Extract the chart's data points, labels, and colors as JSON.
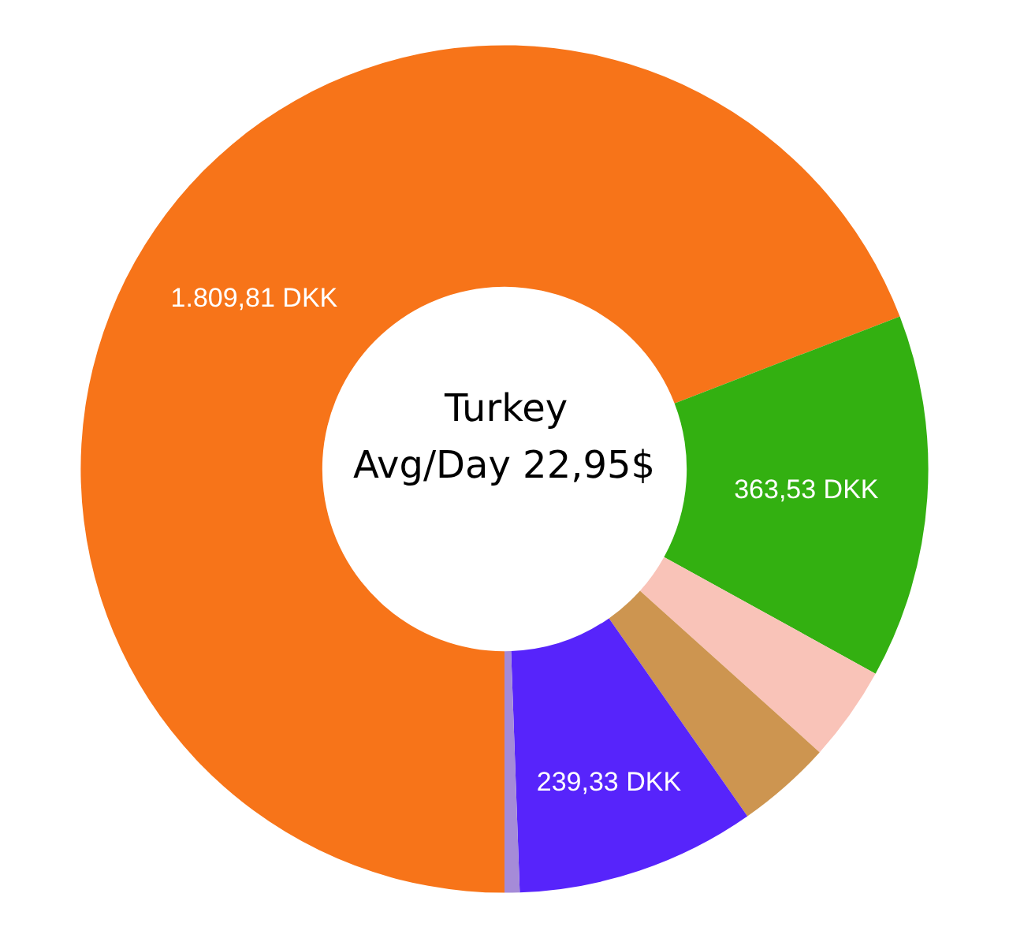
{
  "chart_data": {
    "type": "donut",
    "categories": [
      null,
      null,
      null,
      null,
      null,
      null
    ],
    "values": [
      1809.81,
      363.53,
      95,
      95,
      239.33,
      15
    ],
    "colors": [
      "#f77419",
      "#33b011",
      "#f9c3b8",
      "#cd9550",
      "#5724fb",
      "#a58bd8"
    ],
    "value_labels": [
      "1.809,81 DKK",
      "363,53 DKK",
      null,
      null,
      "239,33 DKK",
      null
    ],
    "annotations": [
      "Turkey",
      "Avg/Day 22,95$"
    ]
  }
}
